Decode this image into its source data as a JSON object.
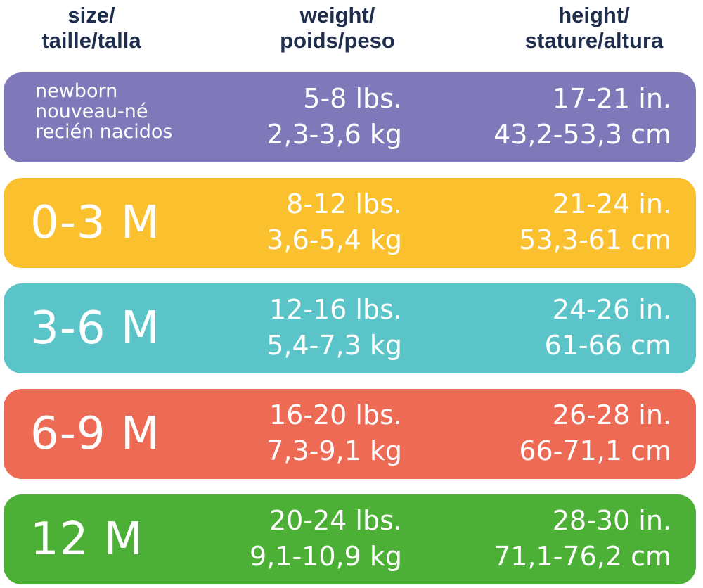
{
  "header": {
    "size": [
      "size/",
      "taille/talla"
    ],
    "weight": [
      "weight/",
      "poids/peso"
    ],
    "height": [
      "height/",
      "stature/altura"
    ]
  },
  "colors": {
    "header_text": "#1f2d4d",
    "newborn": "#7f79b9",
    "m0_3": "#fbc02d",
    "m3_6": "#5bc4c8",
    "m6_9": "#ed6a55",
    "m12": "#4caf36"
  },
  "rows": [
    {
      "size_lines": [
        "newborn",
        "nouveau-né",
        "recién nacidos"
      ],
      "weight": [
        "5-8 lbs.",
        "2,3-3,6 kg"
      ],
      "height": [
        "17-21 in.",
        "43,2-53,3 cm"
      ]
    },
    {
      "size": "0-3 M",
      "weight": [
        "8-12 lbs.",
        "3,6-5,4 kg"
      ],
      "height": [
        "21-24 in.",
        "53,3-61 cm"
      ]
    },
    {
      "size": "3-6 M",
      "weight": [
        "12-16 lbs.",
        "5,4-7,3 kg"
      ],
      "height": [
        "24-26 in.",
        "61-66 cm"
      ]
    },
    {
      "size": "6-9 M",
      "weight": [
        "16-20 lbs.",
        "7,3-9,1 kg"
      ],
      "height": [
        "26-28 in.",
        "66-71,1 cm"
      ]
    },
    {
      "size": "12 M",
      "weight": [
        "20-24 lbs.",
        "9,1-10,9 kg"
      ],
      "height": [
        "28-30 in.",
        "71,1-76,2 cm"
      ]
    }
  ]
}
